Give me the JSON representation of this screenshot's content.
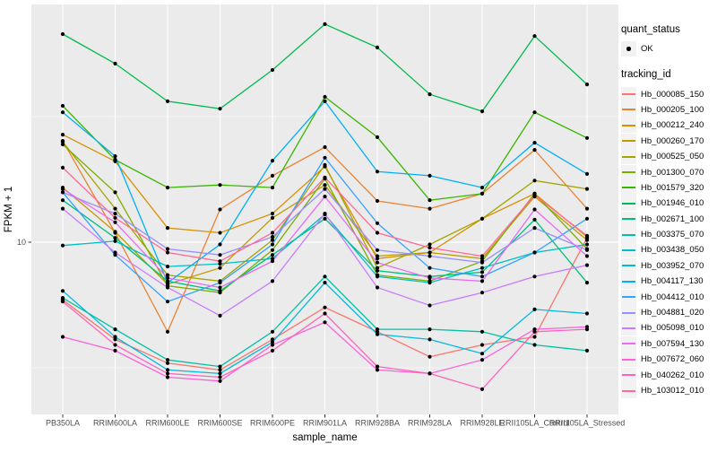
{
  "figure": {
    "panel_bg": "#EBEBEB",
    "grid_color": "#FFFFFF",
    "axis_text_color": "#4D4D4D",
    "tick_color": "#333333",
    "point_color": "#000000",
    "x_axis": {
      "title": "sample_name"
    },
    "y_axis": {
      "title": "FPKM + 1",
      "tick_labels": [
        "10"
      ]
    }
  },
  "legend": {
    "key_bg": "#F2F2F2",
    "quant_status": {
      "title": "quant_status",
      "items": [
        {
          "label": "OK",
          "marker": "black-point"
        }
      ]
    },
    "tracking_id": {
      "title": "tracking_id"
    }
  },
  "chart_data": {
    "type": "line",
    "title": "",
    "xlabel": "sample_name",
    "ylabel": "FPKM + 1",
    "y_scale": "log10",
    "y_tick_values": [
      10
    ],
    "y_minor_tick_values": [
      3.162,
      31.62
    ],
    "ylim_approx": [
      2.3,
      85
    ],
    "grid": true,
    "legend_position": "right",
    "marker": "point",
    "quant_status_all": "OK",
    "categories": [
      "PB350LA",
      "RRIM600LA",
      "RRIM600LE",
      "RRIM600SE",
      "RRIM600PE",
      "RRIM901LA",
      "RRIM928BA",
      "RRIM928LA",
      "RRIM928LE",
      "RRII105LA_Control",
      "RRII105LA_Stressed"
    ],
    "series": [
      {
        "name": "Hb_000085_150",
        "color": "#F8766D",
        "values": [
          5.9,
          4.1,
          3.3,
          3.1,
          4.1,
          5.5,
          4.4,
          3.5,
          3.9,
          4.2,
          10.4
        ]
      },
      {
        "name": "Hb_000205_100",
        "color": "#EA8331",
        "values": [
          25.3,
          10.9,
          4.4,
          13.5,
          18.4,
          23.9,
          14.6,
          13.6,
          15.6,
          23.3,
          13.6
        ]
      },
      {
        "name": "Hb_000212_240",
        "color": "#D89000",
        "values": [
          26.8,
          21.0,
          11.4,
          10.9,
          13.0,
          20.0,
          8.6,
          9.1,
          12.4,
          15.6,
          10.5
        ]
      },
      {
        "name": "Hb_000260_170",
        "color": "#C09B00",
        "values": [
          16.5,
          11.0,
          6.8,
          7.9,
          12.5,
          16.9,
          8.8,
          9.1,
          8.6,
          15.2,
          10.2
        ]
      },
      {
        "name": "Hb_000525_050",
        "color": "#A3A500",
        "values": [
          25.1,
          13.6,
          7.4,
          7.0,
          10.2,
          20.3,
          7.9,
          9.8,
          12.4,
          17.6,
          16.3
        ]
      },
      {
        "name": "Hb_001300_070",
        "color": "#7CAE00",
        "values": [
          24.5,
          15.8,
          6.7,
          6.3,
          9.3,
          17.9,
          7.4,
          7.0,
          8.4,
          15.6,
          9.4
        ]
      },
      {
        "name": "Hb_001579_320",
        "color": "#39B600",
        "values": [
          34.9,
          21.3,
          16.5,
          16.9,
          16.5,
          37.9,
          26.2,
          14.7,
          15.6,
          32.9,
          26.0
        ]
      },
      {
        "name": "Hb_001946_010",
        "color": "#00BB4E",
        "values": [
          67.4,
          51.4,
          36.4,
          34.0,
          48.5,
          73.8,
          59.6,
          38.8,
          33.2,
          66.2,
          42.5
        ]
      },
      {
        "name": "Hb_002671_100",
        "color": "#00BF7D",
        "values": [
          14.7,
          10.4,
          7.0,
          6.4,
          8.9,
          12.4,
          7.7,
          7.3,
          7.6,
          12.3,
          6.9
        ]
      },
      {
        "name": "Hb_003375_070",
        "color": "#00C1A3",
        "values": [
          6.0,
          4.5,
          3.4,
          3.2,
          4.4,
          7.3,
          4.5,
          4.5,
          4.4,
          3.9,
          3.7
        ]
      },
      {
        "name": "Hb_003438_050",
        "color": "#00BFC4",
        "values": [
          9.7,
          10.1,
          8.0,
          8.2,
          8.6,
          12.9,
          7.3,
          6.9,
          7.9,
          9.1,
          9.8
        ]
      },
      {
        "name": "Hb_003952_070",
        "color": "#00BAE0",
        "values": [
          6.4,
          4.2,
          3.1,
          3.0,
          4.0,
          6.9,
          4.3,
          4.1,
          3.6,
          5.4,
          5.2
        ]
      },
      {
        "name": "Hb_004117_130",
        "color": "#00B0F6",
        "values": [
          32.9,
          22.0,
          6.9,
          9.8,
          21.1,
          36.4,
          19.1,
          18.4,
          16.5,
          24.9,
          18.7
        ]
      },
      {
        "name": "Hb_004412_010",
        "color": "#35A2FF",
        "values": [
          15.8,
          8.9,
          5.8,
          6.9,
          9.8,
          21.7,
          11.9,
          7.9,
          7.3,
          9.1,
          12.4
        ]
      },
      {
        "name": "Hb_004881_020",
        "color": "#9590FF",
        "values": [
          15.8,
          13.0,
          9.4,
          8.9,
          10.5,
          16.3,
          9.3,
          8.8,
          8.3,
          11.4,
          9.3
        ]
      },
      {
        "name": "Hb_005098_010",
        "color": "#C77CFF",
        "values": [
          13.6,
          9.1,
          6.6,
          5.1,
          7.0,
          13.0,
          6.6,
          5.6,
          6.3,
          7.3,
          8.1
        ]
      },
      {
        "name": "Hb_007594_130",
        "color": "#E76BF3",
        "values": [
          16.3,
          12.0,
          7.2,
          6.6,
          8.4,
          15.2,
          8.3,
          7.2,
          7.0,
          13.5,
          8.8
        ]
      },
      {
        "name": "Hb_007672_060",
        "color": "#FA62DB",
        "values": [
          4.2,
          3.7,
          2.9,
          2.8,
          3.9,
          4.8,
          3.1,
          3.0,
          3.4,
          4.5,
          4.6
        ]
      },
      {
        "name": "Hb_040262_010",
        "color": "#FF62BC",
        "values": [
          5.8,
          3.9,
          3.0,
          2.9,
          3.7,
          5.2,
          3.2,
          3.0,
          2.6,
          4.4,
          4.5
        ]
      },
      {
        "name": "Hb_103012_010",
        "color": "#FF6A98",
        "values": [
          19.8,
          12.5,
          9.1,
          8.4,
          10.9,
          18.1,
          10.9,
          9.5,
          8.8,
          15.4,
          10.6
        ]
      }
    ]
  }
}
